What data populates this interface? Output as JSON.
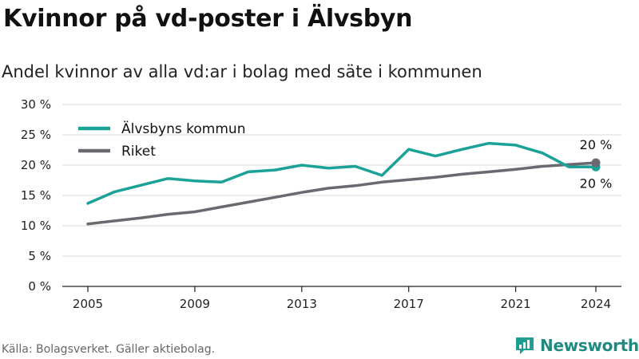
{
  "title": "Kvinnor på vd-poster i Älvsbyn",
  "subtitle": "Andel kvinnor av alla vd:ar i bolag med säte i kommunen",
  "source": "Källa: Bolagsverket. Gäller aktiebolag.",
  "brand": {
    "name": "Newsworthy",
    "icon": "bar-chart-logo-icon",
    "color": "#1f9e94"
  },
  "chart_data": {
    "type": "line",
    "title": "",
    "xlabel": "",
    "ylabel": "",
    "x": [
      2005,
      2006,
      2007,
      2008,
      2009,
      2010,
      2011,
      2012,
      2013,
      2014,
      2015,
      2016,
      2017,
      2018,
      2019,
      2020,
      2021,
      2022,
      2023,
      2024
    ],
    "xticks": [
      "2005",
      "2009",
      "2013",
      "2017",
      "2021",
      "2024"
    ],
    "yticks": [
      "0 %",
      "5 %",
      "10 %",
      "15 %",
      "20 %",
      "25 %",
      "30 %"
    ],
    "ylim": [
      0,
      30
    ],
    "grid": true,
    "legend": "top-left",
    "series": [
      {
        "name": "Älvsbyns kommun",
        "color": "#1aa198",
        "values": [
          13.7,
          15.6,
          16.7,
          17.8,
          17.4,
          17.2,
          18.9,
          19.2,
          20.0,
          19.5,
          19.8,
          18.3,
          22.6,
          21.5,
          22.6,
          23.6,
          23.3,
          22.0,
          19.7,
          19.7
        ],
        "end_label": "20 %"
      },
      {
        "name": "Riket",
        "color": "#6b6970",
        "values": [
          10.3,
          10.8,
          11.3,
          11.9,
          12.3,
          13.1,
          13.9,
          14.7,
          15.5,
          16.2,
          16.6,
          17.2,
          17.6,
          18.0,
          18.5,
          18.9,
          19.3,
          19.8,
          20.1,
          20.4
        ],
        "end_label": "20 %"
      }
    ]
  }
}
